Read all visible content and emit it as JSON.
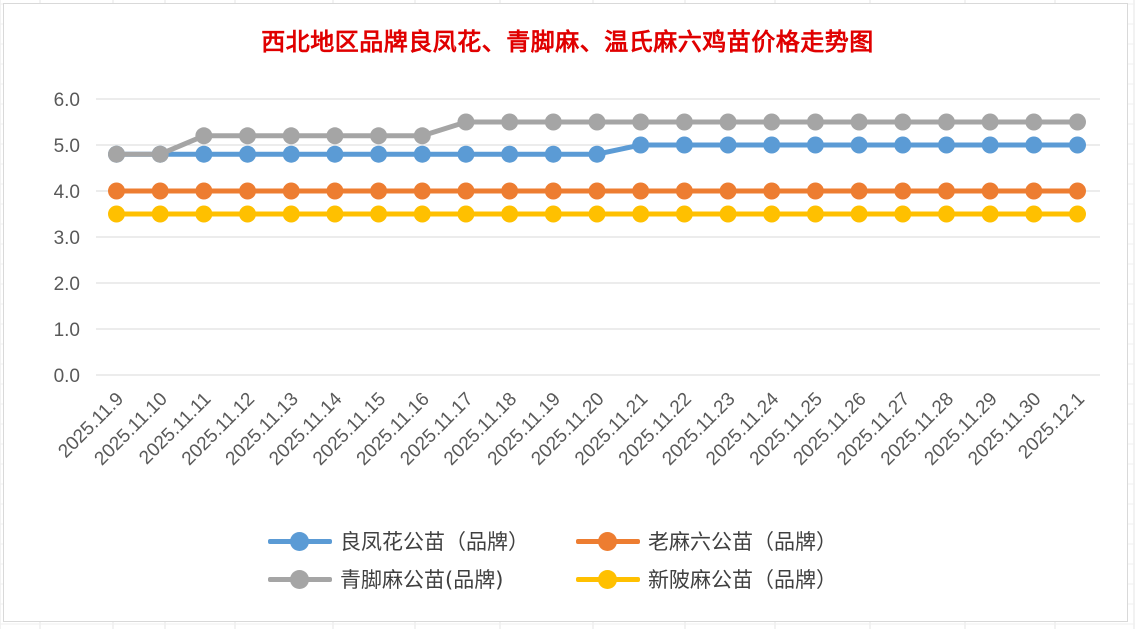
{
  "chart_data": {
    "type": "line",
    "title": "西北地区品牌良凤花、青脚麻、温氏麻六鸡苗价格走势图",
    "categories": [
      "2025.11.9",
      "2025.11.10",
      "2025.11.11",
      "2025.11.12",
      "2025.11.13",
      "2025.11.14",
      "2025.11.15",
      "2025.11.16",
      "2025.11.17",
      "2025.11.18",
      "2025.11.19",
      "2025.11.20",
      "2025.11.21",
      "2025.11.22",
      "2025.11.23",
      "2025.11.24",
      "2025.11.25",
      "2025.11.26",
      "2025.11.27",
      "2025.11.28",
      "2025.11.29",
      "2025.11.30",
      "2025.12.1"
    ],
    "ylim": [
      0,
      6
    ],
    "yticks": [
      "0.0",
      "1.0",
      "2.0",
      "3.0",
      "4.0",
      "5.0",
      "6.0"
    ],
    "grid": true,
    "legend_position": "bottom",
    "series": [
      {
        "name": "良凤花公苗（品牌）",
        "color": "#5b9bd5",
        "values": [
          4.8,
          4.8,
          4.8,
          4.8,
          4.8,
          4.8,
          4.8,
          4.8,
          4.8,
          4.8,
          4.8,
          4.8,
          5.0,
          5.0,
          5.0,
          5.0,
          5.0,
          5.0,
          5.0,
          5.0,
          5.0,
          5.0,
          5.0
        ]
      },
      {
        "name": "老麻六公苗（品牌）",
        "color": "#ed7d31",
        "values": [
          4.0,
          4.0,
          4.0,
          4.0,
          4.0,
          4.0,
          4.0,
          4.0,
          4.0,
          4.0,
          4.0,
          4.0,
          4.0,
          4.0,
          4.0,
          4.0,
          4.0,
          4.0,
          4.0,
          4.0,
          4.0,
          4.0,
          4.0
        ]
      },
      {
        "name": "青脚麻公苗(品牌)",
        "color": "#a5a5a5",
        "values": [
          4.8,
          4.8,
          5.2,
          5.2,
          5.2,
          5.2,
          5.2,
          5.2,
          5.5,
          5.5,
          5.5,
          5.5,
          5.5,
          5.5,
          5.5,
          5.5,
          5.5,
          5.5,
          5.5,
          5.5,
          5.5,
          5.5,
          5.5
        ]
      },
      {
        "name": "新陂麻公苗（品牌）",
        "color": "#ffc000",
        "values": [
          3.5,
          3.5,
          3.5,
          3.5,
          3.5,
          3.5,
          3.5,
          3.5,
          3.5,
          3.5,
          3.5,
          3.5,
          3.5,
          3.5,
          3.5,
          3.5,
          3.5,
          3.5,
          3.5,
          3.5,
          3.5,
          3.5,
          3.5
        ]
      }
    ]
  },
  "legend_order": [
    0,
    1,
    2,
    3
  ]
}
